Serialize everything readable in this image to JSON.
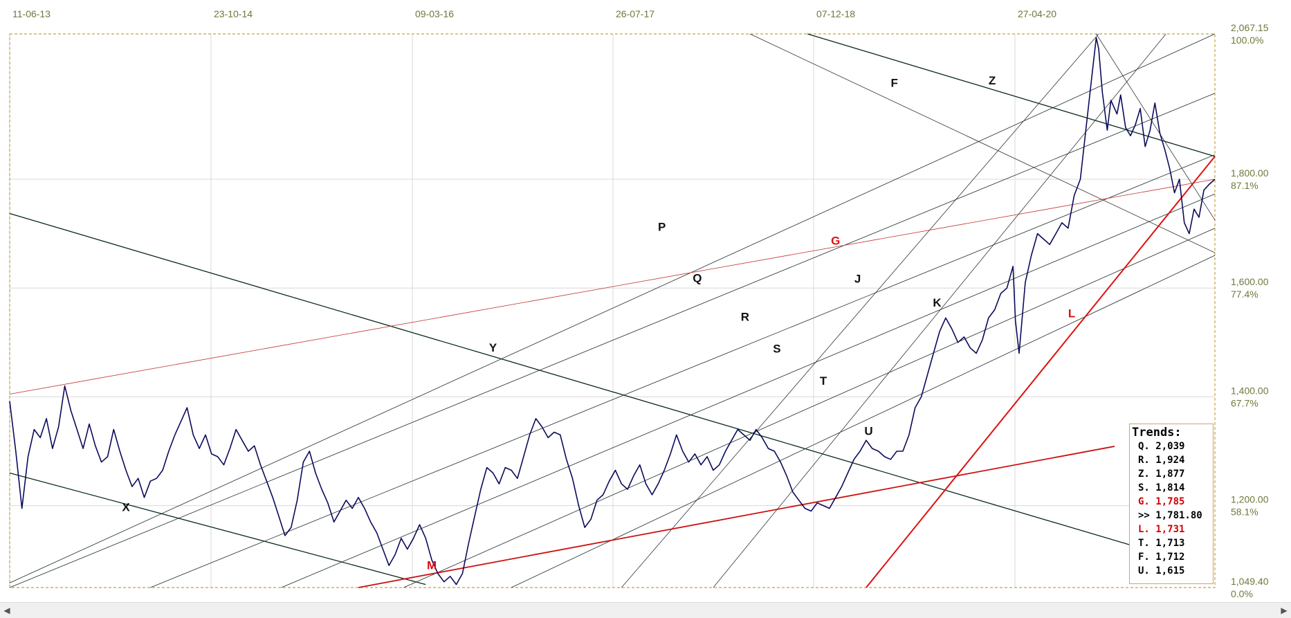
{
  "chart_data": {
    "type": "line",
    "x_labels": [
      "11-06-13",
      "23-10-14",
      "09-03-16",
      "26-07-17",
      "07-12-18",
      "27-04-20"
    ],
    "y_ticks": [
      {
        "price": "2,067.15",
        "pct": "100.0%"
      },
      {
        "price": "1,800.00",
        "pct": "87.1%"
      },
      {
        "price": "1,600.00",
        "pct": "77.4%"
      },
      {
        "price": "1,400.00",
        "pct": "67.7%"
      },
      {
        "price": "1,200.00",
        "pct": "58.1%"
      },
      {
        "price": "1,049.40",
        "pct": "0.0%"
      }
    ],
    "ylim": [
      1049.4,
      2067.15
    ],
    "grid": true,
    "series": [
      {
        "color": "#0a0a5a",
        "points": [
          [
            0,
            1392
          ],
          [
            5,
            1300
          ],
          [
            10,
            1195
          ],
          [
            15,
            1290
          ],
          [
            20,
            1340
          ],
          [
            25,
            1325
          ],
          [
            30,
            1360
          ],
          [
            35,
            1305
          ],
          [
            40,
            1345
          ],
          [
            45,
            1420
          ],
          [
            50,
            1375
          ],
          [
            55,
            1340
          ],
          [
            60,
            1305
          ],
          [
            65,
            1350
          ],
          [
            70,
            1310
          ],
          [
            75,
            1280
          ],
          [
            80,
            1290
          ],
          [
            85,
            1340
          ],
          [
            90,
            1300
          ],
          [
            95,
            1265
          ],
          [
            100,
            1235
          ],
          [
            105,
            1250
          ],
          [
            110,
            1215
          ],
          [
            115,
            1245
          ],
          [
            120,
            1250
          ],
          [
            125,
            1265
          ],
          [
            130,
            1300
          ],
          [
            135,
            1330
          ],
          [
            140,
            1355
          ],
          [
            145,
            1380
          ],
          [
            150,
            1330
          ],
          [
            155,
            1305
          ],
          [
            160,
            1330
          ],
          [
            165,
            1295
          ],
          [
            170,
            1290
          ],
          [
            175,
            1275
          ],
          [
            180,
            1305
          ],
          [
            185,
            1340
          ],
          [
            190,
            1320
          ],
          [
            195,
            1300
          ],
          [
            200,
            1310
          ],
          [
            205,
            1275
          ],
          [
            210,
            1245
          ],
          [
            215,
            1215
          ],
          [
            220,
            1180
          ],
          [
            225,
            1145
          ],
          [
            230,
            1160
          ],
          [
            235,
            1210
          ],
          [
            240,
            1280
          ],
          [
            245,
            1300
          ],
          [
            250,
            1260
          ],
          [
            255,
            1230
          ],
          [
            260,
            1205
          ],
          [
            265,
            1170
          ],
          [
            270,
            1190
          ],
          [
            275,
            1210
          ],
          [
            280,
            1195
          ],
          [
            285,
            1215
          ],
          [
            290,
            1195
          ],
          [
            295,
            1170
          ],
          [
            300,
            1150
          ],
          [
            305,
            1120
          ],
          [
            310,
            1090
          ],
          [
            315,
            1110
          ],
          [
            320,
            1140
          ],
          [
            325,
            1120
          ],
          [
            330,
            1140
          ],
          [
            335,
            1165
          ],
          [
            340,
            1140
          ],
          [
            345,
            1100
          ],
          [
            350,
            1075
          ],
          [
            355,
            1060
          ],
          [
            360,
            1070
          ],
          [
            365,
            1055
          ],
          [
            370,
            1075
          ],
          [
            375,
            1130
          ],
          [
            380,
            1180
          ],
          [
            385,
            1230
          ],
          [
            390,
            1270
          ],
          [
            395,
            1260
          ],
          [
            400,
            1240
          ],
          [
            405,
            1270
          ],
          [
            410,
            1265
          ],
          [
            415,
            1250
          ],
          [
            420,
            1290
          ],
          [
            425,
            1330
          ],
          [
            430,
            1360
          ],
          [
            435,
            1345
          ],
          [
            440,
            1325
          ],
          [
            445,
            1335
          ],
          [
            450,
            1330
          ],
          [
            455,
            1285
          ],
          [
            460,
            1250
          ],
          [
            465,
            1200
          ],
          [
            470,
            1160
          ],
          [
            475,
            1175
          ],
          [
            480,
            1210
          ],
          [
            485,
            1220
          ],
          [
            490,
            1245
          ],
          [
            495,
            1265
          ],
          [
            500,
            1240
          ],
          [
            505,
            1230
          ],
          [
            510,
            1255
          ],
          [
            515,
            1275
          ],
          [
            520,
            1240
          ],
          [
            525,
            1220
          ],
          [
            530,
            1240
          ],
          [
            535,
            1265
          ],
          [
            540,
            1295
          ],
          [
            545,
            1330
          ],
          [
            550,
            1300
          ],
          [
            555,
            1280
          ],
          [
            560,
            1295
          ],
          [
            565,
            1275
          ],
          [
            570,
            1290
          ],
          [
            575,
            1265
          ],
          [
            580,
            1275
          ],
          [
            585,
            1300
          ],
          [
            590,
            1320
          ],
          [
            595,
            1340
          ],
          [
            600,
            1330
          ],
          [
            605,
            1320
          ],
          [
            610,
            1340
          ],
          [
            615,
            1325
          ],
          [
            620,
            1305
          ],
          [
            625,
            1300
          ],
          [
            630,
            1280
          ],
          [
            635,
            1255
          ],
          [
            640,
            1225
          ],
          [
            645,
            1210
          ],
          [
            650,
            1195
          ],
          [
            655,
            1190
          ],
          [
            660,
            1205
          ],
          [
            665,
            1200
          ],
          [
            670,
            1195
          ],
          [
            675,
            1215
          ],
          [
            680,
            1235
          ],
          [
            685,
            1260
          ],
          [
            690,
            1285
          ],
          [
            695,
            1300
          ],
          [
            700,
            1320
          ],
          [
            705,
            1305
          ],
          [
            710,
            1300
          ],
          [
            715,
            1290
          ],
          [
            720,
            1285
          ],
          [
            725,
            1300
          ],
          [
            730,
            1300
          ],
          [
            735,
            1330
          ],
          [
            740,
            1380
          ],
          [
            745,
            1400
          ],
          [
            750,
            1440
          ],
          [
            755,
            1480
          ],
          [
            760,
            1520
          ],
          [
            765,
            1545
          ],
          [
            770,
            1525
          ],
          [
            775,
            1500
          ],
          [
            780,
            1510
          ],
          [
            785,
            1490
          ],
          [
            790,
            1480
          ],
          [
            795,
            1505
          ],
          [
            800,
            1545
          ],
          [
            805,
            1560
          ],
          [
            810,
            1590
          ],
          [
            815,
            1600
          ],
          [
            820,
            1640
          ],
          [
            822,
            1540
          ],
          [
            825,
            1480
          ],
          [
            830,
            1610
          ],
          [
            835,
            1660
          ],
          [
            840,
            1700
          ],
          [
            845,
            1690
          ],
          [
            850,
            1680
          ],
          [
            855,
            1700
          ],
          [
            860,
            1720
          ],
          [
            865,
            1710
          ],
          [
            870,
            1770
          ],
          [
            875,
            1800
          ],
          [
            880,
            1900
          ],
          [
            885,
            2000
          ],
          [
            888,
            2060
          ],
          [
            890,
            2040
          ],
          [
            893,
            1960
          ],
          [
            897,
            1890
          ],
          [
            900,
            1945
          ],
          [
            905,
            1920
          ],
          [
            908,
            1955
          ],
          [
            912,
            1895
          ],
          [
            916,
            1880
          ],
          [
            920,
            1900
          ],
          [
            924,
            1930
          ],
          [
            928,
            1860
          ],
          [
            932,
            1890
          ],
          [
            936,
            1940
          ],
          [
            940,
            1885
          ],
          [
            944,
            1855
          ],
          [
            948,
            1820
          ],
          [
            952,
            1775
          ],
          [
            956,
            1800
          ],
          [
            960,
            1720
          ],
          [
            964,
            1700
          ],
          [
            968,
            1745
          ],
          [
            972,
            1730
          ],
          [
            976,
            1780
          ],
          [
            980,
            1790
          ],
          [
            985,
            1800
          ]
        ]
      }
    ],
    "trend_lines": [
      {
        "id": "X",
        "label": "X",
        "color": "#0a2a1a",
        "width": 1.3,
        "x1": 0,
        "y1": 1260,
        "x2": 340,
        "y2": 1055,
        "lx": 95,
        "ly": 1190
      },
      {
        "id": "Y",
        "label": "Y",
        "color": "#0a2a1a",
        "width": 1.3,
        "x1": 0,
        "y1": 1737,
        "x2": 920,
        "y2": 1125,
        "lx": 395,
        "ly": 1483
      },
      {
        "id": "Z",
        "label": "Z",
        "color": "#0a2a1a",
        "width": 1.3,
        "x1": 652,
        "y1": 2067.15,
        "x2": 985,
        "y2": 1842,
        "lx": 803,
        "ly": 1974
      },
      {
        "id": "F",
        "label": "F",
        "color": "#333333",
        "width": 0.8,
        "x1": 605,
        "y1": 2067.15,
        "x2": 985,
        "y2": 1665,
        "lx": 723,
        "ly": 1970
      },
      {
        "id": "P",
        "label": "P",
        "color": "#1a2a2a",
        "width": 0.8,
        "x1": 0,
        "y1": 1058,
        "x2": 985,
        "y2": 2067.15,
        "lx": 533,
        "ly": 1705
      },
      {
        "id": "Q",
        "label": "Q",
        "color": "#1a2a2a",
        "width": 0.8,
        "x1": 0,
        "y1": 1049.4,
        "x2": 985,
        "y2": 1958,
        "lx": 562,
        "ly": 1611
      },
      {
        "id": "R",
        "label": "R",
        "color": "#1a2a2a",
        "width": 0.8,
        "x1": 115,
        "y1": 1049.4,
        "x2": 985,
        "y2": 1845,
        "lx": 601,
        "ly": 1540
      },
      {
        "id": "S",
        "label": "S",
        "color": "#1a2a2a",
        "width": 0.8,
        "x1": 222,
        "y1": 1049.4,
        "x2": 985,
        "y2": 1773,
        "lx": 627,
        "ly": 1481
      },
      {
        "id": "T",
        "label": "T",
        "color": "#1a2a2a",
        "width": 0.8,
        "x1": 322,
        "y1": 1049.4,
        "x2": 985,
        "y2": 1710,
        "lx": 665,
        "ly": 1422
      },
      {
        "id": "U",
        "label": "U",
        "color": "#1a2a2a",
        "width": 0.8,
        "x1": 410,
        "y1": 1049.4,
        "x2": 985,
        "y2": 1660,
        "lx": 702,
        "ly": 1330
      },
      {
        "id": "J",
        "label": "J",
        "color": "#333333",
        "width": 0.8,
        "x1": 500,
        "y1": 1049.4,
        "x2": 890,
        "y2": 2067.15,
        "lx": 693,
        "ly": 1610
      },
      {
        "id": "K",
        "label": "K",
        "color": "#333333",
        "width": 0.8,
        "x1": 575,
        "y1": 1049.4,
        "x2": 945,
        "y2": 2067.15,
        "lx": 758,
        "ly": 1566
      },
      {
        "id": "G",
        "label": "G",
        "color": "#c03030",
        "width": 0.8,
        "x1": 0,
        "y1": 1405,
        "x2": 985,
        "y2": 1800,
        "lx": 675,
        "ly": 1680
      },
      {
        "id": "M",
        "label": "M",
        "color": "#cc1010",
        "width": 1.8,
        "x1": 285,
        "y1": 1049.4,
        "x2": 903,
        "y2": 1309,
        "lx": 345,
        "ly": 1083
      },
      {
        "id": "L",
        "label": "L",
        "color": "#dd1010",
        "width": 2,
        "x1": 700,
        "y1": 1049.4,
        "x2": 985,
        "y2": 1842,
        "lx": 868,
        "ly": 1546
      },
      {
        "id": "V1",
        "label": "",
        "color": "#333333",
        "width": 0.8,
        "x1": 888,
        "y1": 2067.15,
        "x2": 985,
        "y2": 1725,
        "lx": 0,
        "ly": 0
      }
    ]
  },
  "legend": {
    "title": "Trends:",
    "rows": [
      {
        "text": "Q. 2,039",
        "color": "#000000"
      },
      {
        "text": "R. 1,924",
        "color": "#000000"
      },
      {
        "text": "Z. 1,877",
        "color": "#000000"
      },
      {
        "text": "S. 1,814",
        "color": "#000000"
      },
      {
        "text": "G. 1,785",
        "color": "#d40000"
      },
      {
        "text": ">> 1,781.80",
        "color": "#000000"
      },
      {
        "text": "L. 1,731",
        "color": "#d40000"
      },
      {
        "text": "T. 1,713",
        "color": "#000000"
      },
      {
        "text": "F. 1,712",
        "color": "#000000"
      },
      {
        "text": "U. 1,615",
        "color": "#000000"
      }
    ]
  },
  "scrollbar": {
    "left_arrow": "◀",
    "right_arrow": "▶"
  }
}
